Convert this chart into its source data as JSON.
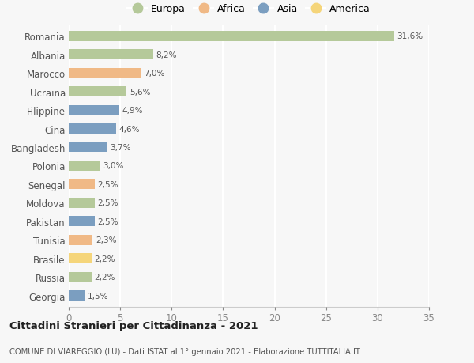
{
  "countries": [
    "Romania",
    "Albania",
    "Marocco",
    "Ucraina",
    "Filippine",
    "Cina",
    "Bangladesh",
    "Polonia",
    "Senegal",
    "Moldova",
    "Pakistan",
    "Tunisia",
    "Brasile",
    "Russia",
    "Georgia"
  ],
  "values": [
    31.6,
    8.2,
    7.0,
    5.6,
    4.9,
    4.6,
    3.7,
    3.0,
    2.5,
    2.5,
    2.5,
    2.3,
    2.2,
    2.2,
    1.5
  ],
  "labels": [
    "31,6%",
    "8,2%",
    "7,0%",
    "5,6%",
    "4,9%",
    "4,6%",
    "3,7%",
    "3,0%",
    "2,5%",
    "2,5%",
    "2,5%",
    "2,3%",
    "2,2%",
    "2,2%",
    "1,5%"
  ],
  "continents": [
    "Europa",
    "Europa",
    "Africa",
    "Europa",
    "Asia",
    "Asia",
    "Asia",
    "Europa",
    "Africa",
    "Europa",
    "Asia",
    "Africa",
    "America",
    "Europa",
    "Asia"
  ],
  "continent_colors": {
    "Europa": "#b5c99a",
    "Africa": "#f0b986",
    "Asia": "#7b9ec0",
    "America": "#f5d57a"
  },
  "legend_order": [
    "Europa",
    "Africa",
    "Asia",
    "America"
  ],
  "title": "Cittadini Stranieri per Cittadinanza - 2021",
  "subtitle": "COMUNE DI VIAREGGIO (LU) - Dati ISTAT al 1° gennaio 2021 - Elaborazione TUTTITALIA.IT",
  "xlim": [
    0,
    35
  ],
  "xticks": [
    0,
    5,
    10,
    15,
    20,
    25,
    30,
    35
  ],
  "background_color": "#f7f7f7",
  "grid_color": "#ffffff",
  "bar_height": 0.55
}
